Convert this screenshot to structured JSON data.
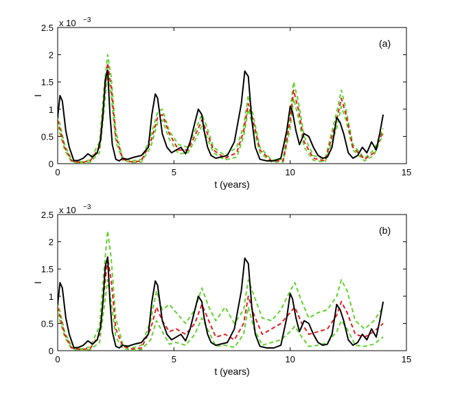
{
  "chart_data": [
    {
      "type": "line",
      "panel_label": "(a)",
      "xlabel": "t (years)",
      "ylabel": "I",
      "exponent_label": "x 10",
      "exponent_power": "−3",
      "xlim": [
        0,
        15
      ],
      "ylim": [
        0,
        2.5
      ],
      "xticks": [
        "0",
        "5",
        "10",
        "15"
      ],
      "yticks": [
        "0",
        "0.5",
        "1",
        "1.5",
        "2",
        "2.5"
      ],
      "grid": false,
      "colors": {
        "observed": "#000000",
        "fit_mean": "#e41a1c",
        "fit_band": "#5fd22a"
      },
      "series": [
        {
          "style": "solid",
          "color": "#000000",
          "x": [
            0,
            0.1,
            0.2,
            0.35,
            0.5,
            0.7,
            0.9,
            1.1,
            1.3,
            1.5,
            1.7,
            1.85,
            1.95,
            2.05,
            2.15,
            2.25,
            2.35,
            2.5,
            2.65,
            2.8,
            3,
            3.3,
            3.6,
            3.9,
            4.05,
            4.2,
            4.3,
            4.5,
            4.7,
            4.9,
            5.1,
            5.3,
            5.5,
            5.7,
            5.9,
            6.05,
            6.2,
            6.3,
            6.45,
            6.6,
            6.8,
            7,
            7.3,
            7.6,
            7.9,
            8.05,
            8.2,
            8.35,
            8.5,
            8.7,
            9,
            9.3,
            9.6,
            9.85,
            10,
            10.1,
            10.25,
            10.4,
            10.6,
            10.8,
            11,
            11.2,
            11.4,
            11.6,
            11.8,
            12,
            12.15,
            12.3,
            12.5,
            12.7,
            12.9,
            13.1,
            13.3,
            13.5,
            13.7,
            13.85,
            14
          ],
          "y": [
            0.85,
            1.25,
            1.15,
            0.6,
            0.3,
            0.05,
            0.06,
            0.1,
            0.18,
            0.12,
            0.2,
            0.45,
            0.9,
            1.55,
            1.72,
            0.9,
            0.35,
            0.08,
            0.05,
            0.1,
            0.08,
            0.12,
            0.15,
            0.3,
            0.9,
            1.28,
            1.2,
            0.55,
            0.3,
            0.2,
            0.25,
            0.3,
            0.18,
            0.4,
            0.75,
            1.0,
            0.9,
            0.6,
            0.3,
            0.15,
            0.1,
            0.12,
            0.15,
            0.4,
            1.1,
            1.7,
            1.6,
            0.8,
            0.3,
            0.08,
            0.05,
            0.05,
            0.1,
            0.6,
            1.05,
            0.95,
            0.6,
            0.35,
            0.55,
            0.5,
            0.3,
            0.15,
            0.1,
            0.12,
            0.3,
            0.85,
            0.75,
            0.55,
            0.2,
            0.1,
            0.15,
            0.3,
            0.2,
            0.4,
            0.25,
            0.55,
            0.9
          ]
        },
        {
          "style": "dashed",
          "color": "#e41a1c",
          "x": [
            0,
            0.3,
            0.6,
            1,
            1.4,
            1.8,
            2,
            2.15,
            2.3,
            2.5,
            2.8,
            3.2,
            3.6,
            4,
            4.3,
            4.5,
            4.8,
            5.2,
            5.6,
            6,
            6.2,
            6.4,
            6.7,
            7.2,
            7.7,
            8,
            8.2,
            8.4,
            8.7,
            9.2,
            9.7,
            10,
            10.15,
            10.35,
            10.6,
            11,
            11.5,
            12,
            12.2,
            12.4,
            12.7,
            13.2,
            13.6,
            14
          ],
          "y": [
            0.8,
            0.3,
            0.05,
            0.02,
            0.05,
            0.3,
            1.2,
            1.85,
            1.4,
            0.5,
            0.08,
            0.03,
            0.05,
            0.4,
            0.85,
            0.9,
            0.55,
            0.25,
            0.25,
            0.6,
            0.8,
            0.6,
            0.25,
            0.1,
            0.2,
            0.6,
            1.1,
            0.8,
            0.25,
            0.05,
            0.05,
            0.8,
            1.35,
            1.0,
            0.4,
            0.1,
            0.05,
            0.8,
            1.2,
            0.9,
            0.3,
            0.08,
            0.2,
            0.6
          ]
        },
        {
          "style": "dashed",
          "color": "#5fd22a",
          "x": [
            0,
            0.3,
            0.6,
            1,
            1.4,
            1.8,
            2,
            2.15,
            2.3,
            2.5,
            2.8,
            3.2,
            3.6,
            4,
            4.3,
            4.5,
            4.8,
            5.2,
            5.6,
            6,
            6.2,
            6.4,
            6.7,
            7.2,
            7.7,
            8,
            8.2,
            8.4,
            8.7,
            9.2,
            9.7,
            10,
            10.15,
            10.35,
            10.6,
            11,
            11.5,
            12,
            12.2,
            12.4,
            12.7,
            13.2,
            13.6,
            14
          ],
          "y": [
            0.9,
            0.35,
            0.08,
            0.03,
            0.07,
            0.4,
            1.4,
            2.0,
            1.6,
            0.6,
            0.1,
            0.05,
            0.08,
            0.5,
            0.95,
            1.0,
            0.6,
            0.35,
            0.3,
            0.7,
            0.9,
            0.7,
            0.3,
            0.15,
            0.3,
            0.7,
            1.25,
            0.9,
            0.3,
            0.07,
            0.08,
            1.0,
            1.5,
            1.15,
            0.5,
            0.15,
            0.08,
            0.95,
            1.35,
            1.0,
            0.35,
            0.1,
            0.25,
            0.65
          ]
        },
        {
          "style": "dashed",
          "color": "#5fd22a",
          "x": [
            0,
            0.3,
            0.6,
            1,
            1.4,
            1.8,
            2,
            2.15,
            2.3,
            2.5,
            2.8,
            3.2,
            3.6,
            4,
            4.3,
            4.5,
            4.8,
            5.2,
            5.6,
            6,
            6.2,
            6.4,
            6.7,
            7.2,
            7.7,
            8,
            8.2,
            8.4,
            8.7,
            9.2,
            9.7,
            10,
            10.15,
            10.35,
            10.6,
            11,
            11.5,
            12,
            12.2,
            12.4,
            12.7,
            13.2,
            13.6,
            14
          ],
          "y": [
            0.7,
            0.25,
            0.03,
            0.01,
            0.03,
            0.2,
            1.0,
            1.7,
            1.25,
            0.4,
            0.06,
            0.02,
            0.03,
            0.3,
            0.75,
            0.8,
            0.45,
            0.18,
            0.2,
            0.5,
            0.7,
            0.5,
            0.2,
            0.07,
            0.12,
            0.5,
            1.0,
            0.7,
            0.2,
            0.03,
            0.03,
            0.65,
            1.2,
            0.85,
            0.3,
            0.06,
            0.03,
            0.65,
            1.05,
            0.8,
            0.25,
            0.05,
            0.15,
            0.55
          ]
        }
      ]
    },
    {
      "type": "line",
      "panel_label": "(b)",
      "xlabel": "t (years)",
      "ylabel": "I",
      "exponent_label": "x 10",
      "exponent_power": "−3",
      "xlim": [
        0,
        15
      ],
      "ylim": [
        0,
        2.5
      ],
      "xticks": [
        "0",
        "5",
        "10",
        "15"
      ],
      "yticks": [
        "0",
        "0.5",
        "1",
        "1.5",
        "2",
        "2.5"
      ],
      "grid": false,
      "colors": {
        "observed": "#000000",
        "fit_mean": "#e41a1c",
        "fit_band": "#5fd22a"
      },
      "series": [
        {
          "style": "solid",
          "color": "#000000",
          "x": [
            0,
            0.1,
            0.2,
            0.35,
            0.5,
            0.7,
            0.9,
            1.1,
            1.3,
            1.5,
            1.7,
            1.85,
            1.95,
            2.05,
            2.15,
            2.25,
            2.35,
            2.5,
            2.65,
            2.8,
            3,
            3.3,
            3.6,
            3.9,
            4.05,
            4.2,
            4.3,
            4.5,
            4.7,
            4.9,
            5.1,
            5.3,
            5.5,
            5.7,
            5.9,
            6.05,
            6.2,
            6.3,
            6.45,
            6.6,
            6.8,
            7,
            7.3,
            7.6,
            7.9,
            8.05,
            8.2,
            8.35,
            8.5,
            8.7,
            9,
            9.3,
            9.6,
            9.85,
            10,
            10.1,
            10.25,
            10.4,
            10.6,
            10.8,
            11,
            11.2,
            11.4,
            11.6,
            11.8,
            12,
            12.15,
            12.3,
            12.5,
            12.7,
            12.9,
            13.1,
            13.3,
            13.5,
            13.7,
            13.85,
            14
          ],
          "y": [
            0.85,
            1.25,
            1.15,
            0.6,
            0.3,
            0.05,
            0.06,
            0.1,
            0.18,
            0.12,
            0.2,
            0.45,
            0.9,
            1.55,
            1.72,
            0.9,
            0.35,
            0.08,
            0.05,
            0.1,
            0.08,
            0.12,
            0.15,
            0.3,
            0.9,
            1.28,
            1.2,
            0.55,
            0.3,
            0.2,
            0.25,
            0.3,
            0.18,
            0.4,
            0.75,
            1.0,
            0.9,
            0.6,
            0.3,
            0.15,
            0.1,
            0.12,
            0.15,
            0.4,
            1.1,
            1.7,
            1.6,
            0.8,
            0.3,
            0.08,
            0.05,
            0.05,
            0.1,
            0.6,
            1.05,
            0.95,
            0.6,
            0.35,
            0.55,
            0.5,
            0.3,
            0.15,
            0.1,
            0.12,
            0.3,
            0.85,
            0.75,
            0.55,
            0.2,
            0.1,
            0.15,
            0.3,
            0.2,
            0.4,
            0.25,
            0.55,
            0.9
          ]
        },
        {
          "style": "dashed",
          "color": "#e41a1c",
          "x": [
            0,
            0.3,
            0.6,
            1,
            1.4,
            1.8,
            2,
            2.15,
            2.3,
            2.5,
            2.8,
            3.2,
            3.6,
            4,
            4.25,
            4.5,
            4.8,
            5.1,
            5.5,
            5.9,
            6.2,
            6.5,
            6.8,
            7.2,
            7.6,
            8,
            8.2,
            8.45,
            8.8,
            9.2,
            9.6,
            10,
            10.2,
            10.5,
            10.8,
            11.2,
            11.6,
            12,
            12.2,
            12.45,
            12.8,
            13.2,
            13.6,
            14
          ],
          "y": [
            0.8,
            0.3,
            0.05,
            0.02,
            0.04,
            0.3,
            1.1,
            1.7,
            1.3,
            0.4,
            0.08,
            0.03,
            0.05,
            0.4,
            0.8,
            0.55,
            0.35,
            0.4,
            0.3,
            0.5,
            0.85,
            0.55,
            0.25,
            0.3,
            0.2,
            0.5,
            1.0,
            0.65,
            0.3,
            0.4,
            0.5,
            0.7,
            0.8,
            0.5,
            0.3,
            0.35,
            0.4,
            0.65,
            0.9,
            0.7,
            0.3,
            0.25,
            0.35,
            0.5
          ]
        },
        {
          "style": "dashed",
          "color": "#5fd22a",
          "x": [
            0,
            0.3,
            0.6,
            1,
            1.4,
            1.8,
            2,
            2.15,
            2.3,
            2.5,
            2.8,
            3.2,
            3.6,
            4,
            4.25,
            4.5,
            4.8,
            5.1,
            5.5,
            5.9,
            6.2,
            6.5,
            6.8,
            7.2,
            7.6,
            8,
            8.2,
            8.45,
            8.8,
            9.2,
            9.6,
            10,
            10.2,
            10.5,
            10.8,
            11.2,
            11.6,
            12,
            12.2,
            12.45,
            12.8,
            13.2,
            13.6,
            14
          ],
          "y": [
            0.9,
            0.35,
            0.08,
            0.03,
            0.07,
            0.45,
            1.5,
            2.2,
            1.7,
            0.6,
            0.12,
            0.05,
            0.1,
            0.55,
            1.1,
            0.75,
            0.85,
            0.7,
            0.5,
            0.75,
            1.15,
            0.8,
            0.55,
            0.8,
            0.5,
            0.75,
            1.3,
            1.0,
            0.6,
            0.55,
            0.75,
            1.1,
            1.25,
            0.9,
            0.6,
            0.7,
            0.75,
            1.0,
            1.3,
            1.1,
            0.55,
            0.4,
            0.55,
            0.8
          ]
        },
        {
          "style": "dashed",
          "color": "#5fd22a",
          "x": [
            0,
            0.3,
            0.6,
            1,
            1.4,
            1.8,
            2,
            2.15,
            2.3,
            2.5,
            2.8,
            3.2,
            3.6,
            4,
            4.25,
            4.5,
            4.8,
            5.1,
            5.5,
            5.9,
            6.2,
            6.5,
            6.8,
            7.2,
            7.6,
            8,
            8.2,
            8.45,
            8.8,
            9.2,
            9.6,
            10,
            10.2,
            10.5,
            10.8,
            11.2,
            11.6,
            12,
            12.2,
            12.45,
            12.8,
            13.2,
            13.6,
            14
          ],
          "y": [
            0.7,
            0.25,
            0.03,
            0.01,
            0.02,
            0.15,
            0.8,
            1.3,
            0.9,
            0.25,
            0.04,
            0.01,
            0.02,
            0.2,
            0.55,
            0.35,
            0.12,
            0.15,
            0.1,
            0.3,
            0.6,
            0.35,
            0.08,
            0.1,
            0.06,
            0.3,
            0.8,
            0.4,
            0.1,
            0.15,
            0.2,
            0.35,
            0.45,
            0.25,
            0.08,
            0.1,
            0.15,
            0.35,
            0.55,
            0.4,
            0.1,
            0.08,
            0.12,
            0.25
          ]
        }
      ]
    }
  ]
}
